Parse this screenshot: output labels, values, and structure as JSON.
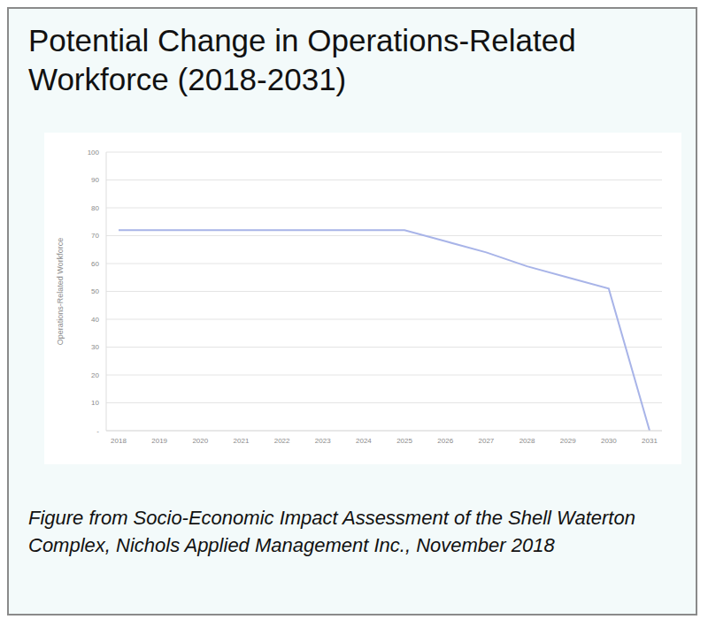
{
  "chart_data": {
    "type": "line",
    "title": "Potential Change in Operations-Related Workforce (2018-2031)",
    "y_label": "Operations-Related Workforce",
    "caption": "Figure from Socio-Economic Impact Assessment of the Shell Waterton Complex, Nichols Applied Management Inc., November 2018",
    "categories": [
      "2018",
      "2019",
      "2020",
      "2021",
      "2022",
      "2023",
      "2024",
      "2025",
      "2026",
      "2027",
      "2028",
      "2029",
      "2030",
      "2031"
    ],
    "values": [
      72,
      72,
      72,
      72,
      72,
      72,
      72,
      72,
      68,
      64,
      59,
      55,
      51,
      0
    ],
    "color": "#a8b4e8",
    "ylim": [
      0,
      100
    ],
    "yticks": [
      {
        "value": 0,
        "label": "-"
      },
      10,
      20,
      30,
      40,
      50,
      60,
      70,
      80,
      90,
      100
    ],
    "grid": true
  }
}
